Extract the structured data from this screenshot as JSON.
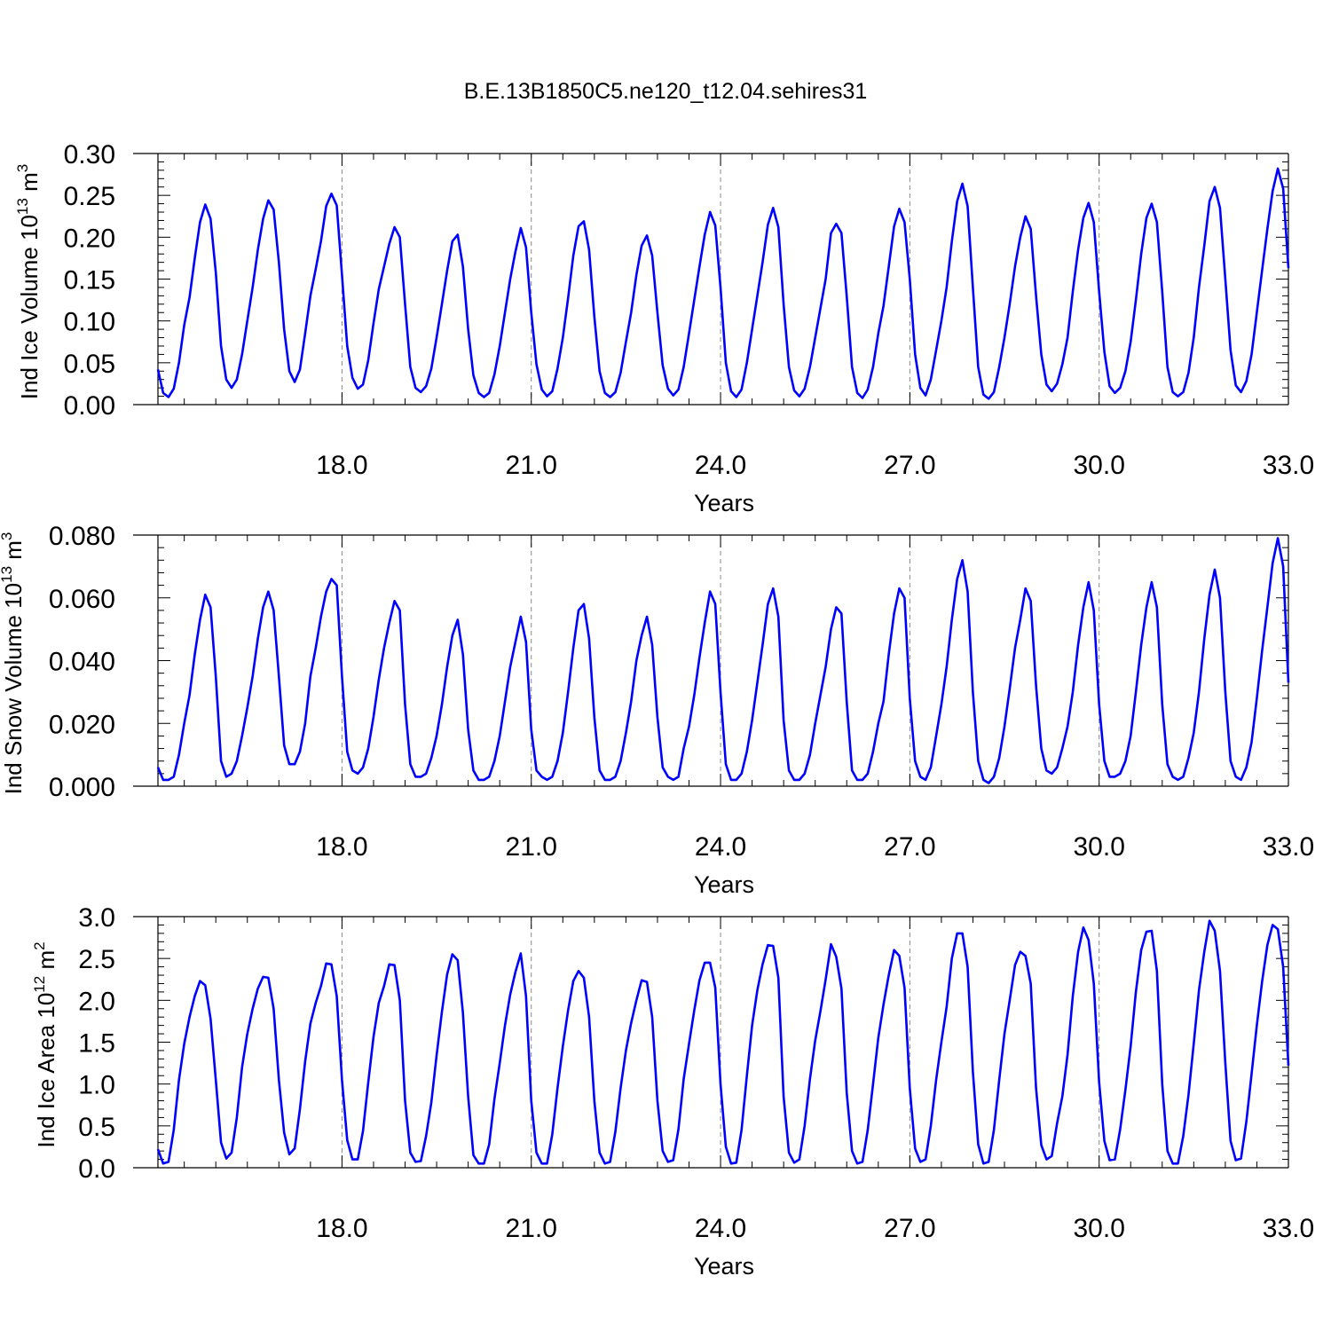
{
  "title": "B.E.13B1850C5.ne120_t12.04.sehires31",
  "chart_data": [
    {
      "type": "line",
      "ylabel": "Ind Ice Volume 10^13 m^3",
      "ylabel_main": "Ind Ice Volume 10",
      "ylabel_exp": "13",
      "ylabel_unit": " m",
      "ylabel_unit_exp": "3",
      "xlabel": "Years",
      "xlim": [
        15.083,
        33.0
      ],
      "ylim": [
        0,
        0.3
      ],
      "yticks": [
        "0.00",
        "0.05",
        "0.10",
        "0.15",
        "0.20",
        "0.25",
        "0.30"
      ],
      "xticks": [
        "18.0",
        "21.0",
        "24.0",
        "27.0",
        "30.0",
        "33.0"
      ],
      "line_color": "#0000ff",
      "grid": "dashed vertical at major x ticks",
      "start_year": 15.083,
      "step_months": 1,
      "values": [
        0.042,
        0.014,
        0.009,
        0.019,
        0.05,
        0.095,
        0.128,
        0.175,
        0.218,
        0.239,
        0.222,
        0.158,
        0.07,
        0.03,
        0.02,
        0.03,
        0.06,
        0.1,
        0.14,
        0.185,
        0.222,
        0.244,
        0.233,
        0.17,
        0.09,
        0.04,
        0.027,
        0.042,
        0.085,
        0.13,
        0.162,
        0.195,
        0.237,
        0.252,
        0.238,
        0.155,
        0.07,
        0.032,
        0.019,
        0.024,
        0.053,
        0.097,
        0.138,
        0.165,
        0.192,
        0.212,
        0.2,
        0.12,
        0.045,
        0.02,
        0.015,
        0.022,
        0.043,
        0.08,
        0.12,
        0.16,
        0.195,
        0.203,
        0.165,
        0.09,
        0.035,
        0.014,
        0.009,
        0.014,
        0.036,
        0.07,
        0.11,
        0.15,
        0.183,
        0.211,
        0.188,
        0.11,
        0.048,
        0.018,
        0.01,
        0.016,
        0.043,
        0.08,
        0.127,
        0.178,
        0.213,
        0.219,
        0.185,
        0.105,
        0.04,
        0.014,
        0.009,
        0.015,
        0.038,
        0.075,
        0.11,
        0.155,
        0.19,
        0.202,
        0.178,
        0.11,
        0.047,
        0.019,
        0.011,
        0.018,
        0.045,
        0.085,
        0.125,
        0.165,
        0.203,
        0.23,
        0.214,
        0.14,
        0.05,
        0.016,
        0.009,
        0.018,
        0.05,
        0.09,
        0.13,
        0.17,
        0.215,
        0.235,
        0.212,
        0.12,
        0.045,
        0.017,
        0.01,
        0.019,
        0.045,
        0.08,
        0.115,
        0.15,
        0.205,
        0.216,
        0.205,
        0.13,
        0.045,
        0.014,
        0.008,
        0.018,
        0.045,
        0.085,
        0.118,
        0.165,
        0.213,
        0.234,
        0.218,
        0.15,
        0.06,
        0.02,
        0.011,
        0.03,
        0.065,
        0.1,
        0.14,
        0.195,
        0.243,
        0.264,
        0.237,
        0.14,
        0.045,
        0.012,
        0.007,
        0.015,
        0.045,
        0.08,
        0.12,
        0.165,
        0.2,
        0.225,
        0.21,
        0.13,
        0.06,
        0.024,
        0.016,
        0.025,
        0.048,
        0.08,
        0.135,
        0.185,
        0.223,
        0.241,
        0.218,
        0.135,
        0.063,
        0.022,
        0.014,
        0.02,
        0.04,
        0.075,
        0.125,
        0.18,
        0.223,
        0.24,
        0.218,
        0.135,
        0.045,
        0.015,
        0.01,
        0.015,
        0.038,
        0.08,
        0.14,
        0.19,
        0.243,
        0.26,
        0.235,
        0.15,
        0.065,
        0.023,
        0.015,
        0.028,
        0.06,
        0.11,
        0.16,
        0.21,
        0.255,
        0.282,
        0.258,
        0.163
      ]
    },
    {
      "type": "line",
      "ylabel": "Ind Snow Volume 10^13 m^3",
      "ylabel_main": "Ind Snow Volume 10",
      "ylabel_exp": "13",
      "ylabel_unit": " m",
      "ylabel_unit_exp": "3",
      "xlabel": "Years",
      "xlim": [
        15.083,
        33.0
      ],
      "ylim": [
        0,
        0.08
      ],
      "yticks": [
        "0.000",
        "0.020",
        "0.040",
        "0.060",
        "0.080"
      ],
      "xticks": [
        "18.0",
        "21.0",
        "24.0",
        "27.0",
        "30.0",
        "33.0"
      ],
      "line_color": "#0000ff",
      "grid": "dashed vertical at major x ticks",
      "start_year": 15.083,
      "step_months": 1,
      "values": [
        0.006,
        0.002,
        0.002,
        0.003,
        0.01,
        0.02,
        0.029,
        0.042,
        0.053,
        0.061,
        0.057,
        0.035,
        0.008,
        0.003,
        0.004,
        0.008,
        0.016,
        0.025,
        0.035,
        0.047,
        0.057,
        0.062,
        0.056,
        0.035,
        0.013,
        0.007,
        0.007,
        0.011,
        0.02,
        0.035,
        0.044,
        0.054,
        0.062,
        0.066,
        0.064,
        0.035,
        0.011,
        0.005,
        0.004,
        0.006,
        0.012,
        0.022,
        0.034,
        0.044,
        0.052,
        0.059,
        0.056,
        0.026,
        0.007,
        0.003,
        0.003,
        0.004,
        0.009,
        0.016,
        0.026,
        0.038,
        0.048,
        0.053,
        0.042,
        0.018,
        0.005,
        0.002,
        0.002,
        0.003,
        0.008,
        0.016,
        0.027,
        0.038,
        0.046,
        0.054,
        0.046,
        0.018,
        0.005,
        0.003,
        0.002,
        0.003,
        0.008,
        0.017,
        0.03,
        0.044,
        0.056,
        0.058,
        0.047,
        0.022,
        0.005,
        0.002,
        0.002,
        0.003,
        0.008,
        0.017,
        0.027,
        0.04,
        0.048,
        0.054,
        0.045,
        0.022,
        0.006,
        0.003,
        0.002,
        0.003,
        0.012,
        0.019,
        0.029,
        0.041,
        0.052,
        0.062,
        0.058,
        0.03,
        0.007,
        0.002,
        0.002,
        0.004,
        0.011,
        0.021,
        0.033,
        0.045,
        0.058,
        0.063,
        0.054,
        0.021,
        0.005,
        0.002,
        0.002,
        0.004,
        0.01,
        0.02,
        0.029,
        0.038,
        0.05,
        0.057,
        0.055,
        0.027,
        0.005,
        0.002,
        0.002,
        0.004,
        0.011,
        0.02,
        0.027,
        0.042,
        0.055,
        0.063,
        0.06,
        0.028,
        0.008,
        0.003,
        0.002,
        0.006,
        0.016,
        0.026,
        0.038,
        0.053,
        0.066,
        0.072,
        0.062,
        0.03,
        0.008,
        0.002,
        0.001,
        0.003,
        0.009,
        0.019,
        0.031,
        0.044,
        0.053,
        0.063,
        0.059,
        0.032,
        0.012,
        0.005,
        0.004,
        0.006,
        0.012,
        0.019,
        0.03,
        0.045,
        0.057,
        0.065,
        0.056,
        0.026,
        0.008,
        0.003,
        0.003,
        0.004,
        0.008,
        0.016,
        0.03,
        0.045,
        0.057,
        0.065,
        0.057,
        0.026,
        0.007,
        0.003,
        0.002,
        0.003,
        0.009,
        0.017,
        0.03,
        0.047,
        0.061,
        0.069,
        0.06,
        0.03,
        0.008,
        0.003,
        0.002,
        0.006,
        0.014,
        0.028,
        0.043,
        0.057,
        0.071,
        0.079,
        0.07,
        0.033
      ]
    },
    {
      "type": "line",
      "ylabel": "Ind Ice Area 10^12 m^2",
      "ylabel_main": "Ind Ice Area 10",
      "ylabel_exp": "12",
      "ylabel_unit": " m",
      "ylabel_unit_exp": "2",
      "xlabel": "Years",
      "xlim": [
        15.083,
        33.0
      ],
      "ylim": [
        0,
        3.0
      ],
      "yticks": [
        "0.0",
        "0.5",
        "1.0",
        "1.5",
        "2.0",
        "2.5",
        "3.0"
      ],
      "xticks": [
        "18.0",
        "21.0",
        "24.0",
        "27.0",
        "30.0",
        "33.0"
      ],
      "line_color": "#0000ff",
      "grid": "dashed vertical at major x ticks",
      "start_year": 15.083,
      "step_months": 1,
      "values": [
        0.22,
        0.05,
        0.07,
        0.45,
        1.05,
        1.48,
        1.8,
        2.05,
        2.23,
        2.18,
        1.78,
        1.05,
        0.3,
        0.11,
        0.18,
        0.6,
        1.2,
        1.6,
        1.9,
        2.14,
        2.28,
        2.27,
        1.9,
        1.05,
        0.42,
        0.16,
        0.23,
        0.7,
        1.27,
        1.72,
        1.97,
        2.17,
        2.44,
        2.43,
        2.05,
        1.05,
        0.33,
        0.1,
        0.1,
        0.44,
        1.02,
        1.56,
        1.97,
        2.17,
        2.43,
        2.42,
        2.0,
        0.8,
        0.18,
        0.07,
        0.08,
        0.38,
        0.78,
        1.34,
        1.86,
        2.31,
        2.55,
        2.48,
        1.85,
        0.85,
        0.15,
        0.05,
        0.05,
        0.28,
        0.82,
        1.25,
        1.7,
        2.07,
        2.34,
        2.56,
        2.05,
        0.8,
        0.18,
        0.05,
        0.05,
        0.4,
        0.95,
        1.45,
        1.88,
        2.23,
        2.35,
        2.27,
        1.8,
        0.8,
        0.18,
        0.05,
        0.07,
        0.43,
        0.95,
        1.4,
        1.73,
        2.0,
        2.24,
        2.22,
        1.8,
        0.8,
        0.2,
        0.07,
        0.09,
        0.46,
        1.06,
        1.48,
        1.88,
        2.24,
        2.45,
        2.45,
        2.15,
        1.0,
        0.25,
        0.05,
        0.06,
        0.45,
        1.1,
        1.7,
        2.12,
        2.43,
        2.66,
        2.65,
        2.27,
        0.85,
        0.18,
        0.06,
        0.1,
        0.5,
        1.06,
        1.52,
        1.87,
        2.25,
        2.67,
        2.52,
        2.14,
        0.9,
        0.2,
        0.05,
        0.07,
        0.45,
        1.0,
        1.55,
        1.95,
        2.3,
        2.6,
        2.53,
        2.15,
        0.95,
        0.23,
        0.07,
        0.1,
        0.5,
        1.05,
        1.5,
        1.92,
        2.5,
        2.8,
        2.8,
        2.4,
        1.15,
        0.28,
        0.05,
        0.07,
        0.45,
        1.05,
        1.6,
        2.0,
        2.42,
        2.58,
        2.53,
        2.2,
        0.95,
        0.27,
        0.1,
        0.14,
        0.53,
        0.85,
        1.35,
        2.05,
        2.58,
        2.87,
        2.72,
        2.2,
        1.02,
        0.32,
        0.09,
        0.1,
        0.46,
        0.93,
        1.45,
        2.1,
        2.6,
        2.82,
        2.83,
        2.35,
        1.0,
        0.2,
        0.05,
        0.05,
        0.38,
        0.87,
        1.48,
        2.12,
        2.58,
        2.95,
        2.83,
        2.35,
        1.25,
        0.32,
        0.09,
        0.11,
        0.55,
        1.12,
        1.7,
        2.22,
        2.66,
        2.9,
        2.85,
        2.4,
        1.22
      ]
    }
  ]
}
